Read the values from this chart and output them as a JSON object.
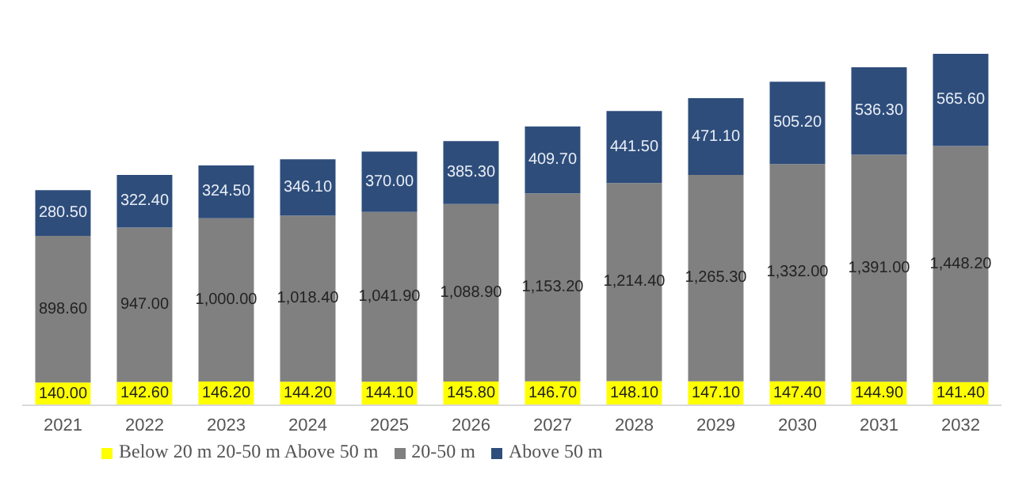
{
  "chart_data": {
    "type": "bar",
    "stacked": true,
    "categories": [
      "2021",
      "2022",
      "2023",
      "2024",
      "2025",
      "2026",
      "2027",
      "2028",
      "2029",
      "2030",
      "2031",
      "2032"
    ],
    "series": [
      {
        "name": "Below 20 m 20-50 m Above 50 m",
        "color": "#ffff00",
        "values": [
          140.0,
          142.6,
          146.2,
          144.2,
          144.1,
          145.8,
          146.7,
          148.1,
          147.1,
          147.4,
          144.9,
          141.4
        ],
        "value_labels": [
          "140.00",
          "142.60",
          "146.20",
          "144.20",
          "144.10",
          "145.80",
          "146.70",
          "148.10",
          "147.10",
          "147.40",
          "144.90",
          "141.40"
        ]
      },
      {
        "name": "20-50 m",
        "color": "#808080",
        "values": [
          898.6,
          947.0,
          1000.0,
          1018.4,
          1041.9,
          1088.9,
          1153.2,
          1214.4,
          1265.3,
          1332.0,
          1391.0,
          1448.2
        ],
        "value_labels": [
          "898.60",
          "947.00",
          "1,000.00",
          "1,018.40",
          "1,041.90",
          "1,088.90",
          "1,153.20",
          "1,214.40",
          "1,265.30",
          "1,332.00",
          "1,391.00",
          "1,448.20"
        ]
      },
      {
        "name": "Above 50 m",
        "color": "#2e4d7b",
        "values": [
          280.5,
          322.4,
          324.5,
          346.1,
          370.0,
          385.3,
          409.7,
          441.5,
          471.1,
          505.2,
          536.3,
          565.6
        ],
        "value_labels": [
          "280.50",
          "322.40",
          "324.50",
          "346.10",
          "370.00",
          "385.30",
          "409.70",
          "441.50",
          "471.10",
          "505.20",
          "536.30",
          "565.60"
        ]
      }
    ],
    "legend": "bottom left"
  }
}
